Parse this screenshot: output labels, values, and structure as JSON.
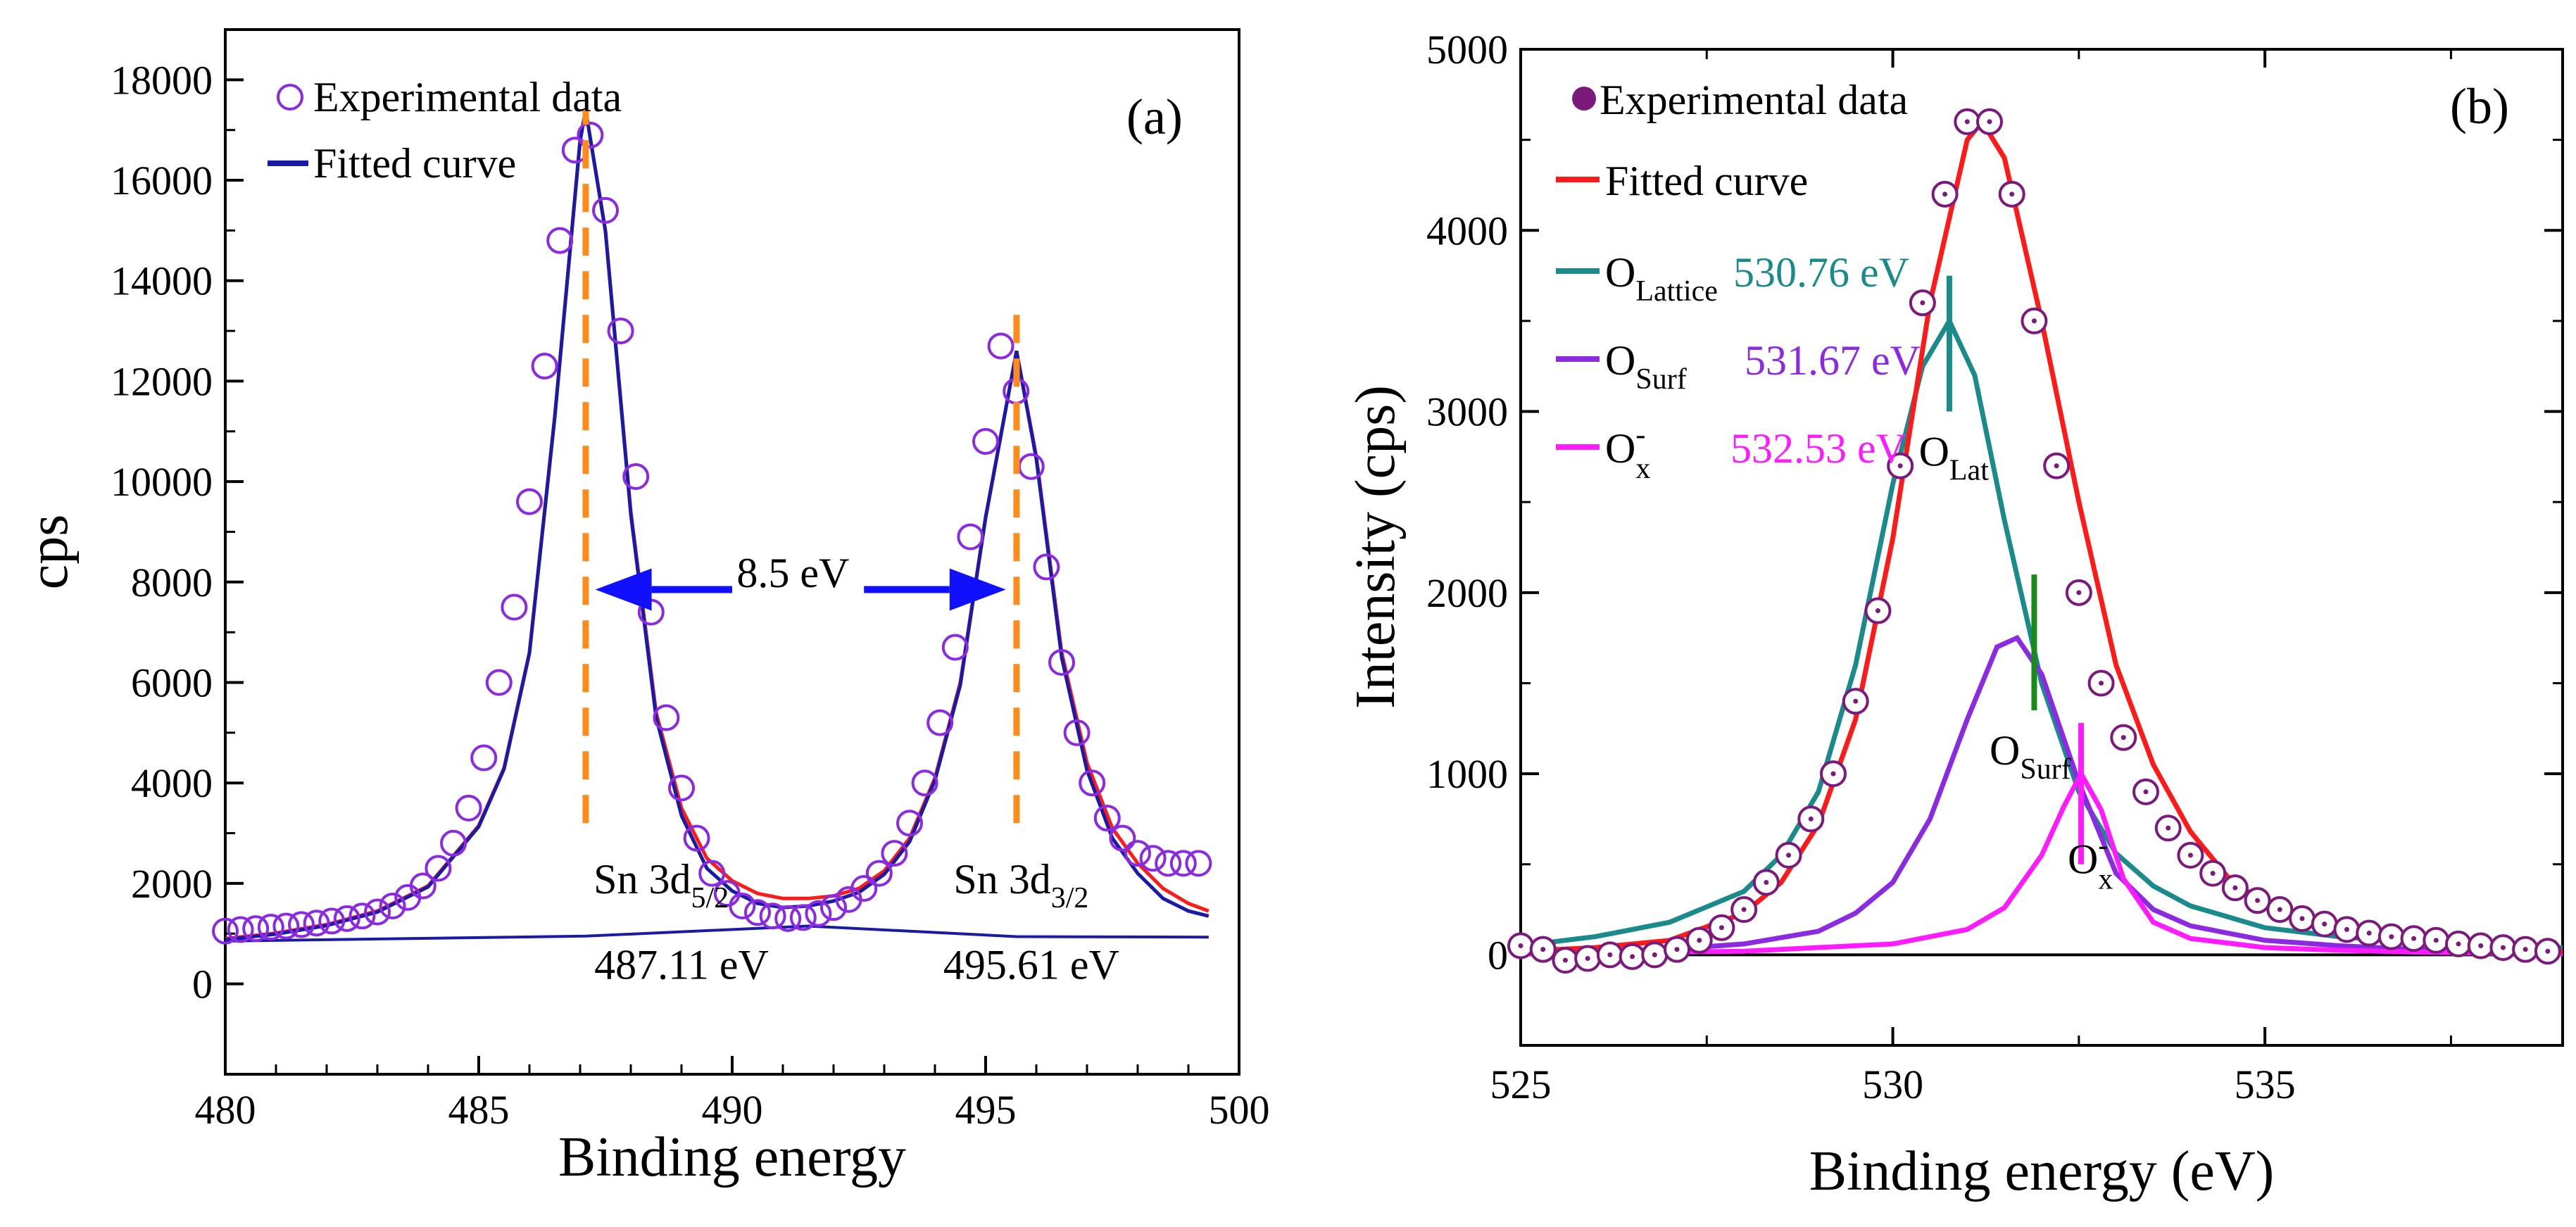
{
  "chart_data": [
    {
      "type": "line",
      "panel_label": "(a)",
      "xlabel": "Binding energy",
      "ylabel": "cps",
      "xlim": [
        480,
        500
      ],
      "ylim": [
        -1800,
        19000
      ],
      "x_ticks": [
        480,
        485,
        490,
        495,
        500
      ],
      "y_ticks": [
        0,
        2000,
        4000,
        6000,
        8000,
        10000,
        12000,
        14000,
        16000,
        18000
      ],
      "legend": [
        {
          "label": "Experimental data",
          "marker": "open-circle",
          "color": "#8a2be2"
        },
        {
          "label": "Fitted curve",
          "marker": "line",
          "color": "#1a1aa6"
        }
      ],
      "series": [
        {
          "name": "Experimental data",
          "color": "#8a2be2",
          "style": "open-circle",
          "x": [
            480.0,
            480.3,
            480.6,
            480.9,
            481.2,
            481.5,
            481.8,
            482.1,
            482.4,
            482.7,
            483.0,
            483.3,
            483.6,
            483.9,
            484.2,
            484.5,
            484.8,
            485.1,
            485.4,
            485.7,
            486.0,
            486.3,
            486.6,
            486.9,
            487.2,
            487.5,
            487.8,
            488.1,
            488.4,
            488.7,
            489.0,
            489.3,
            489.6,
            489.9,
            490.2,
            490.5,
            490.8,
            491.1,
            491.4,
            491.7,
            492.0,
            492.3,
            492.6,
            492.9,
            493.2,
            493.5,
            493.8,
            494.1,
            494.4,
            494.7,
            495.0,
            495.3,
            495.6,
            495.9,
            496.2,
            496.5,
            496.8,
            497.1,
            497.4,
            497.7,
            498.0,
            498.3,
            498.6,
            498.9,
            499.2
          ],
          "y": [
            1050,
            1080,
            1100,
            1130,
            1150,
            1180,
            1210,
            1250,
            1300,
            1350,
            1430,
            1550,
            1720,
            1950,
            2300,
            2800,
            3500,
            4500,
            6000,
            7500,
            9600,
            12300,
            14800,
            16600,
            16900,
            15400,
            13000,
            10100,
            7400,
            5300,
            3900,
            2900,
            2200,
            1800,
            1550,
            1420,
            1350,
            1300,
            1320,
            1400,
            1520,
            1680,
            1900,
            2200,
            2600,
            3200,
            4000,
            5200,
            6700,
            8900,
            10800,
            12700,
            11800,
            10300,
            8300,
            6400,
            5000,
            4000,
            3300,
            2900,
            2600,
            2500,
            2400,
            2400,
            2400
          ]
        },
        {
          "name": "Envelope",
          "color": "#ff1a1a",
          "style": "line",
          "x": [
            480.0,
            481.0,
            482.0,
            483.0,
            484.0,
            485.0,
            485.5,
            486.0,
            486.5,
            487.0,
            487.11,
            487.5,
            488.0,
            488.5,
            489.0,
            489.5,
            490.0,
            490.5,
            491.0,
            491.5,
            492.0,
            492.5,
            493.0,
            493.5,
            494.0,
            494.5,
            495.0,
            495.61,
            496.0,
            496.5,
            497.0,
            497.5,
            498.0,
            498.5,
            499.0,
            499.4
          ],
          "y": [
            900,
            1010,
            1180,
            1450,
            1950,
            3150,
            4300,
            6600,
            11300,
            16800,
            17400,
            15000,
            9400,
            5400,
            3500,
            2500,
            2050,
            1800,
            1700,
            1700,
            1750,
            1900,
            2250,
            2900,
            4100,
            6000,
            9300,
            12600,
            10500,
            6600,
            4400,
            3100,
            2400,
            1900,
            1600,
            1450
          ]
        },
        {
          "name": "Fitted curve",
          "color": "#1a1aa6",
          "style": "line",
          "x": [
            480.0,
            481.0,
            482.0,
            483.0,
            484.0,
            485.0,
            485.5,
            486.0,
            486.5,
            487.0,
            487.11,
            487.5,
            488.0,
            488.5,
            489.0,
            489.5,
            490.0,
            490.5,
            491.0,
            491.5,
            492.0,
            492.5,
            493.0,
            493.5,
            494.0,
            494.5,
            495.0,
            495.61,
            496.0,
            496.5,
            497.0,
            497.5,
            498.0,
            498.5,
            499.0,
            499.4
          ],
          "y": [
            880,
            990,
            1160,
            1430,
            1930,
            3130,
            4280,
            6580,
            11280,
            16780,
            17400,
            14980,
            9350,
            5300,
            3350,
            2300,
            1850,
            1600,
            1520,
            1550,
            1650,
            1820,
            2180,
            2830,
            4050,
            5950,
            9280,
            12600,
            10450,
            6500,
            4250,
            2900,
            2200,
            1700,
            1450,
            1350
          ]
        },
        {
          "name": "Background",
          "color": "#1a1aa6",
          "style": "line",
          "x": [
            480.0,
            487.11,
            491.5,
            495.61,
            499.4
          ],
          "y": [
            850,
            950,
            1150,
            940,
            930
          ]
        }
      ],
      "annotations": [
        {
          "text": "8.5 eV",
          "x": 491.2,
          "y": 7900
        },
        {
          "text": "Sn 3d",
          "sub": "5/2",
          "x": 488.6,
          "y": 1800
        },
        {
          "text": "487.11 eV",
          "x": 489.0,
          "y": 100
        },
        {
          "text": "Sn 3d",
          "sub": "3/2",
          "x": 495.7,
          "y": 1800
        },
        {
          "text": "495.61 eV",
          "x": 495.9,
          "y": 100
        }
      ],
      "peak_markers": [
        {
          "x": 487.11,
          "y_from": 3200,
          "y_to": 17400,
          "color": "#ff8c1a"
        },
        {
          "x": 495.61,
          "y_from": 3200,
          "y_to": 13600,
          "color": "#ff8c1a"
        }
      ],
      "arrows": [
        {
          "from": 490.0,
          "to": 487.3,
          "y": 7850,
          "color": "#1010ff"
        },
        {
          "from": 492.6,
          "to": 495.4,
          "y": 7850,
          "color": "#1010ff"
        }
      ]
    },
    {
      "type": "line",
      "panel_label": "(b)",
      "xlabel": "Binding energy (eV)",
      "ylabel": "Intensity (cps)",
      "xlim": [
        525,
        539
      ],
      "ylim": [
        -500,
        5000
      ],
      "x_ticks": [
        525,
        530,
        535
      ],
      "y_ticks": [
        0,
        1000,
        2000,
        3000,
        4000,
        5000
      ],
      "legend": [
        {
          "label": "Experimental data",
          "marker": "filled-circle",
          "color": "#7b1a7b"
        },
        {
          "label": "Fitted curve",
          "marker": "line",
          "color": "#ff1a1a"
        },
        {
          "label": "O",
          "sub": "Lattice",
          "value": "530.76 eV",
          "marker": "line",
          "color": "#1a8a8a"
        },
        {
          "label": "O",
          "sub": "Surf",
          "value": "531.67 eV",
          "marker": "line",
          "color": "#8a2be2"
        },
        {
          "label": "O",
          "sup": "-",
          "sub": "x",
          "value": "532.53 eV",
          "marker": "line",
          "color": "#ff1aff"
        }
      ],
      "series": [
        {
          "name": "Experimental data",
          "color": "#7b1a7b",
          "style": "dotted-circle",
          "x": [
            525.0,
            525.3,
            525.6,
            525.9,
            526.2,
            526.5,
            526.8,
            527.1,
            527.4,
            527.7,
            528.0,
            528.3,
            528.6,
            528.9,
            529.2,
            529.5,
            529.8,
            530.1,
            530.4,
            530.7,
            531.0,
            531.3,
            531.6,
            531.9,
            532.2,
            532.5,
            532.8,
            533.1,
            533.4,
            533.7,
            534.0,
            534.3,
            534.6,
            534.9,
            535.2,
            535.5,
            535.8,
            536.1,
            536.4,
            536.7,
            537.0,
            537.3,
            537.6,
            537.9,
            538.2,
            538.5,
            538.8
          ],
          "y": [
            50,
            30,
            -30,
            -20,
            0,
            -10,
            0,
            30,
            80,
            150,
            250,
            400,
            550,
            750,
            1000,
            1400,
            1900,
            2700,
            3600,
            4200,
            4600,
            4600,
            4200,
            3500,
            2700,
            2000,
            1500,
            1200,
            900,
            700,
            550,
            450,
            370,
            300,
            250,
            200,
            170,
            140,
            120,
            100,
            90,
            80,
            60,
            50,
            40,
            30,
            20
          ]
        },
        {
          "name": "Fitted curve",
          "color": "#ff1a1a",
          "style": "line",
          "x": [
            525.0,
            526.0,
            527.0,
            528.0,
            528.5,
            529.0,
            529.5,
            530.0,
            530.5,
            531.0,
            531.2,
            531.5,
            532.0,
            532.5,
            533.0,
            533.5,
            534.0,
            534.5,
            535.0,
            536.0,
            537.0,
            538.0,
            539.0
          ],
          "y": [
            20,
            40,
            80,
            230,
            400,
            720,
            1300,
            2300,
            3600,
            4500,
            4600,
            4400,
            3500,
            2500,
            1600,
            1050,
            680,
            430,
            280,
            140,
            80,
            40,
            20
          ]
        },
        {
          "name": "O Lattice",
          "color": "#1a8a8a",
          "style": "line",
          "x": [
            525.0,
            526.0,
            527.0,
            528.0,
            528.5,
            529.0,
            529.5,
            530.0,
            530.4,
            530.76,
            531.1,
            531.5,
            532.0,
            532.5,
            533.0,
            533.5,
            534.0,
            535.0,
            536.0,
            537.0,
            538.0,
            539.0
          ],
          "y": [
            50,
            100,
            180,
            350,
            550,
            900,
            1600,
            2600,
            3250,
            3500,
            3200,
            2400,
            1500,
            900,
            560,
            380,
            270,
            150,
            100,
            70,
            50,
            40
          ]
        },
        {
          "name": "O Surf",
          "color": "#8a2be2",
          "style": "line",
          "x": [
            525.0,
            527.0,
            528.0,
            529.0,
            529.5,
            530.0,
            530.5,
            531.0,
            531.4,
            531.67,
            532.0,
            532.5,
            533.0,
            533.5,
            534.0,
            535.0,
            536.0,
            537.0,
            538.0,
            539.0
          ],
          "y": [
            10,
            30,
            60,
            130,
            230,
            400,
            750,
            1300,
            1700,
            1750,
            1550,
            950,
            450,
            250,
            160,
            80,
            50,
            30,
            20,
            15
          ]
        },
        {
          "name": "O x-",
          "color": "#ff1aff",
          "style": "line",
          "x": [
            525.0,
            528.0,
            530.0,
            531.0,
            531.5,
            532.0,
            532.3,
            532.53,
            532.8,
            533.1,
            533.5,
            534.0,
            535.0,
            536.0,
            537.0,
            538.0,
            539.0
          ],
          "y": [
            5,
            20,
            60,
            140,
            260,
            550,
            820,
            1000,
            800,
            420,
            180,
            90,
            40,
            25,
            15,
            10,
            5
          ]
        }
      ],
      "annotations": [
        {
          "text": "O",
          "sub": "Lat",
          "x": 530.35,
          "y": 2700
        },
        {
          "text": "O",
          "sub": "Surf",
          "x": 531.3,
          "y": 1050
        },
        {
          "text": "O",
          "sup": "-",
          "sub": "x",
          "x": 532.35,
          "y": 450
        }
      ],
      "peak_markers": [
        {
          "x": 530.76,
          "y_from": 3000,
          "y_to": 3750,
          "color": "#1a8a8a"
        },
        {
          "x": 531.9,
          "y_from": 1350,
          "y_to": 2100,
          "color": "#1a8a1a"
        },
        {
          "x": 532.53,
          "y_from": 500,
          "y_to": 1280,
          "color": "#ff1aff"
        }
      ]
    }
  ]
}
